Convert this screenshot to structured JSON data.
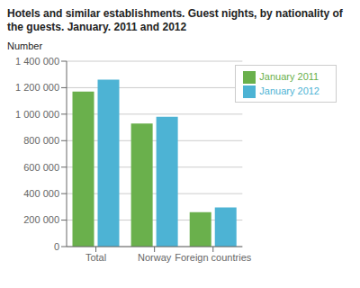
{
  "chart_data": {
    "type": "bar",
    "title": "Hotels and similar establishments. Guest nights, by nationality of the guests. January. 2011 and 2012",
    "y_label": "Number",
    "categories": [
      "Total",
      "Norway",
      "Foreign countries"
    ],
    "series": [
      {
        "name": "January 2011",
        "color": "#6ab04c",
        "values": [
          1170000,
          930000,
          260000
        ]
      },
      {
        "name": "January 2012",
        "color": "#4db3d4",
        "values": [
          1260000,
          980000,
          295000
        ]
      }
    ],
    "ylim": [
      0,
      1400000
    ],
    "yticks": [
      0,
      {
        "value": 200000,
        "label": "200 000"
      },
      {
        "value": 400000,
        "label": "400 000"
      },
      {
        "value": 600000,
        "label": "600 000"
      },
      {
        "value": 800000,
        "label": "800 000"
      },
      {
        "value": 1000000,
        "label": "1 000 000"
      },
      {
        "value": 1200000,
        "label": "1 200 000"
      },
      {
        "value": 1400000,
        "label": "1 400 000"
      }
    ],
    "grid": true,
    "legend": "upper right"
  }
}
